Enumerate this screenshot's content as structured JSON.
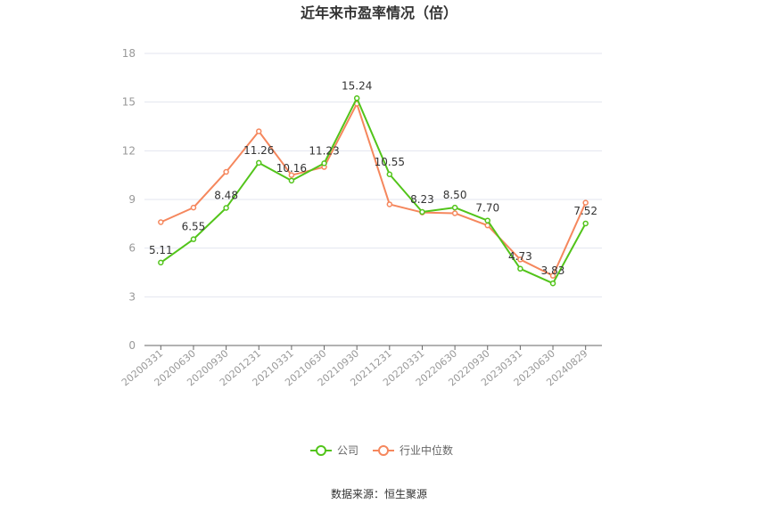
{
  "chart_data": {
    "type": "line",
    "title": "近年来市盈率情况（倍）",
    "x": [
      "20200331",
      "20200630",
      "20200930",
      "20201231",
      "20210331",
      "20210630",
      "20210930",
      "20211231",
      "20220331",
      "20220630",
      "20220930",
      "20230331",
      "20230630",
      "20240829"
    ],
    "ylim": [
      0,
      18
    ],
    "yticks": [
      0,
      3,
      6,
      9,
      12,
      15,
      18
    ],
    "grid": true,
    "legend_position": "bottom",
    "series": [
      {
        "name": "公司",
        "color": "#52c41a",
        "values": [
          5.11,
          6.55,
          8.48,
          11.26,
          10.16,
          11.23,
          15.24,
          10.55,
          8.23,
          8.5,
          7.7,
          4.73,
          3.83,
          7.52
        ],
        "labels": [
          "5.11",
          "6.55",
          "8.48",
          "11.26",
          "10.16",
          "11.23",
          "15.24",
          "10.55",
          "8.23",
          "8.50",
          "7.70",
          "4.73",
          "3.83",
          "7.52"
        ]
      },
      {
        "name": "行业中位数",
        "color": "#f5875d",
        "values": [
          7.6,
          8.5,
          10.7,
          13.2,
          10.5,
          11.0,
          14.9,
          8.7,
          8.2,
          8.15,
          7.4,
          5.3,
          4.3,
          8.8
        ]
      }
    ]
  },
  "source": "数据来源：恒生聚源"
}
